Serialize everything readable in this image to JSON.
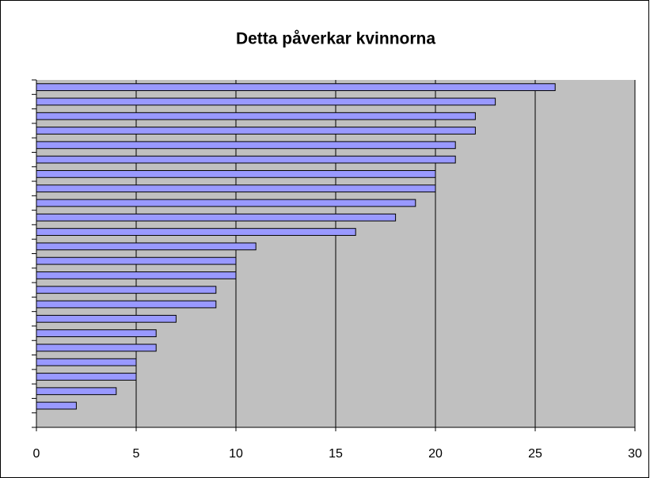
{
  "chart_data": {
    "type": "bar",
    "orientation": "horizontal",
    "title": "Detta påverkar kvinnorna",
    "categories": [
      null,
      null,
      null,
      null,
      null,
      null,
      null,
      null,
      null,
      null,
      null,
      null,
      null,
      null,
      null,
      null,
      null,
      null,
      null,
      null,
      null,
      null,
      null,
      null
    ],
    "values": [
      26,
      23,
      22,
      22,
      21,
      21,
      20,
      20,
      19,
      18,
      16,
      11,
      10,
      10,
      9,
      9,
      7,
      6,
      6,
      5,
      5,
      4,
      2,
      null
    ],
    "color": "#9999ff",
    "xlim": [
      0,
      30
    ],
    "xticks": [
      0,
      5,
      10,
      15,
      20,
      25,
      30
    ],
    "grid": true
  }
}
